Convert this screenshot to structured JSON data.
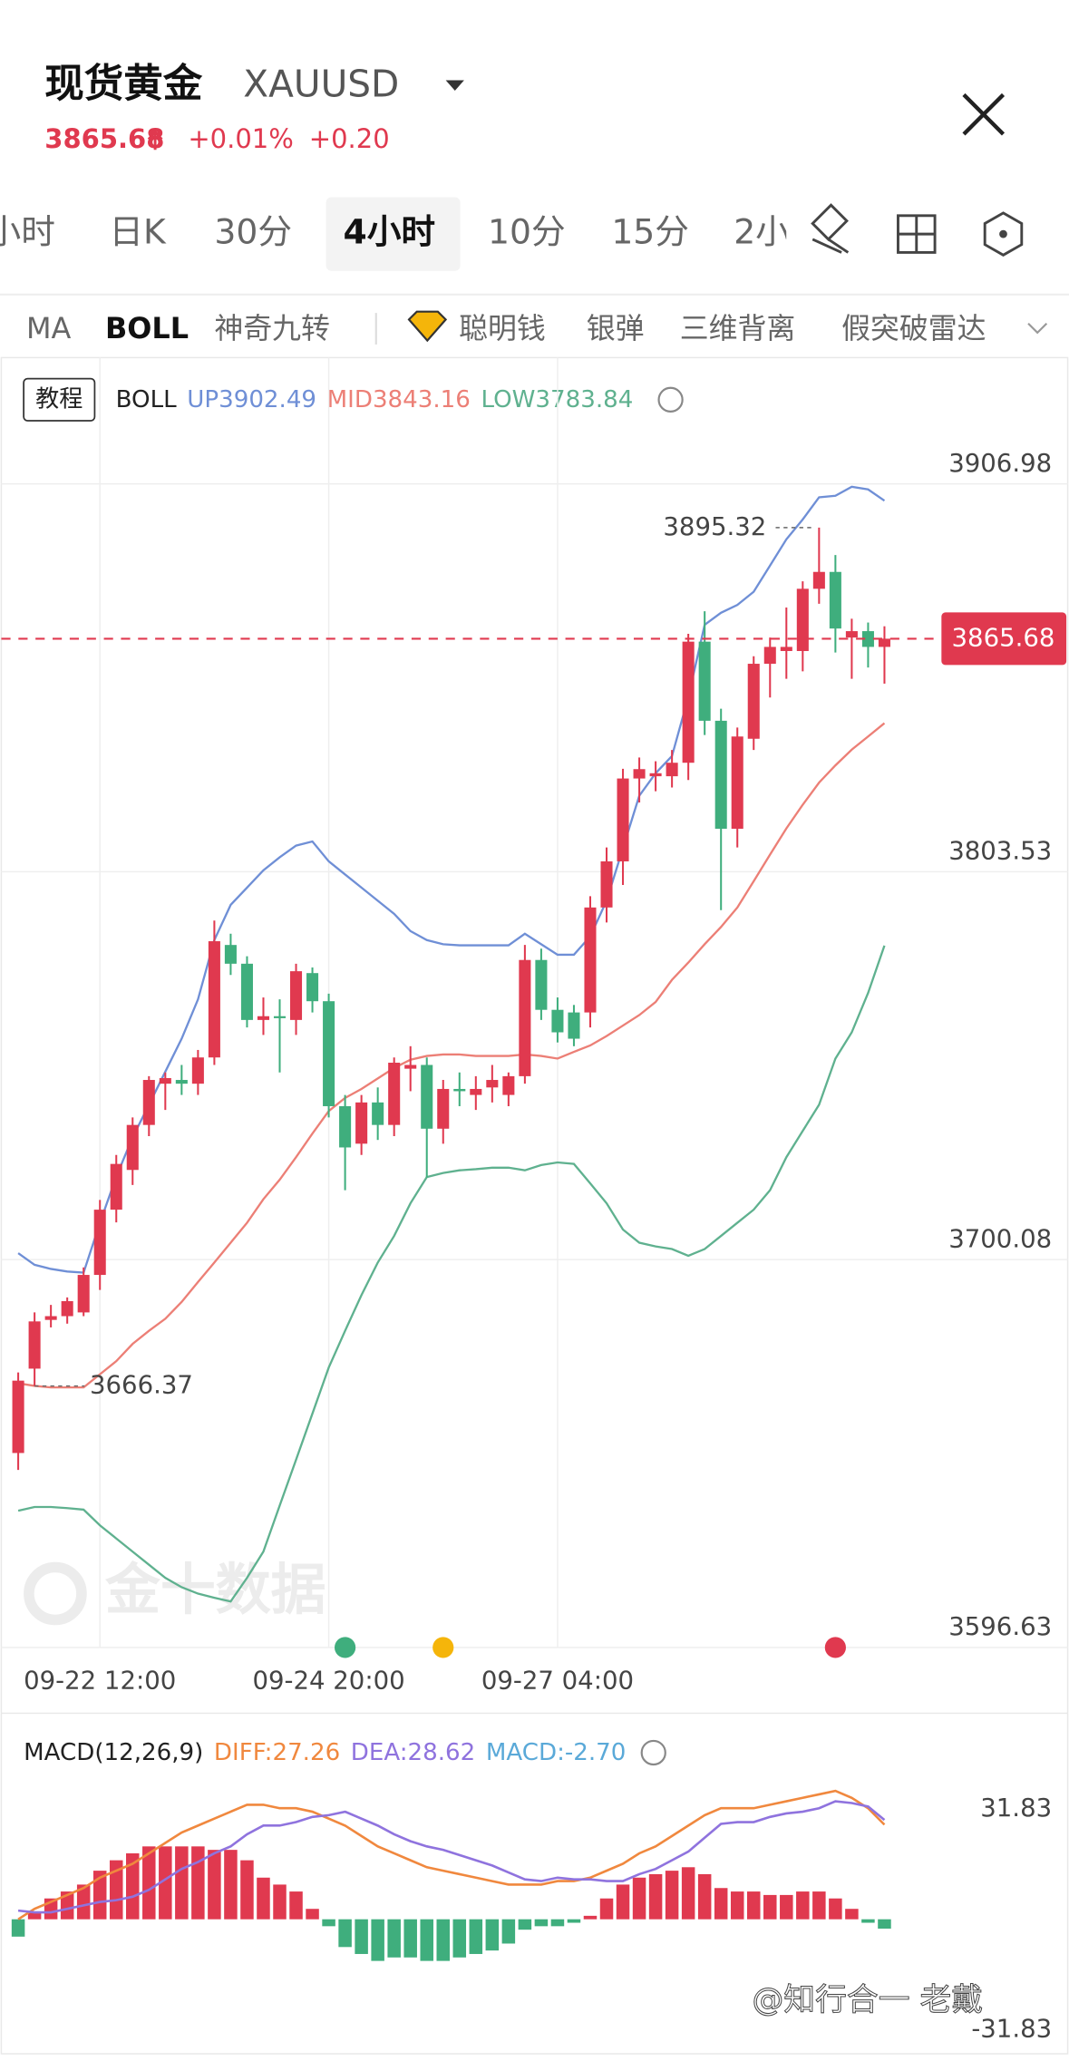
{
  "header": {
    "name": "现货黄金",
    "symbol": "XAUUSD",
    "price": "3865.68",
    "change_pct": "+0.01%",
    "change": "+0.20"
  },
  "tabs": {
    "items": [
      "小时",
      "日K",
      "30分",
      "4小时",
      "10分",
      "15分",
      "2小"
    ],
    "active": 3
  },
  "indicators": {
    "items": [
      "MA",
      "BOLL",
      "神奇九转",
      "聪明钱",
      "银弹",
      "三维背离",
      "假突破雷达"
    ],
    "active": 1
  },
  "chart_data": [
    {
      "type": "candlestick",
      "tutorial": "教程",
      "indicator": "BOLL",
      "categories": [
        null,
        null,
        null,
        null,
        null,
        "09-22 12:00",
        null,
        null,
        null,
        null,
        null,
        null,
        null,
        null,
        null,
        null,
        null,
        null,
        null,
        "09-24 20:00",
        null,
        null,
        null,
        null,
        null,
        null,
        null,
        null,
        null,
        null,
        null,
        null,
        null,
        "09-27 04:00",
        null,
        null,
        null,
        null,
        null,
        null,
        null,
        null,
        null,
        null,
        null,
        null,
        null,
        null,
        null,
        null,
        null,
        null,
        null,
        null
      ],
      "open": [
        3648.5,
        3671,
        3684,
        3685,
        3686,
        3696,
        3713.4,
        3724,
        3736,
        3747,
        3748,
        3747,
        3754,
        3784,
        3779,
        3764,
        3765,
        3764,
        3776.5,
        3769,
        3741,
        3731,
        3742,
        3736,
        3751,
        3752,
        3735,
        3745.6,
        3744,
        3746,
        3744,
        3749,
        3780,
        3766.7,
        3766,
        3766,
        3794,
        3806.3,
        3828.4,
        3829,
        3829,
        3832.6,
        3864.9,
        3843.8,
        3815,
        3839,
        3859,
        3862.4,
        3862.4,
        3879,
        3883.5,
        3866,
        3867.7,
        3863.5
      ],
      "high": [
        3670,
        3686,
        3688,
        3690,
        3698,
        3716,
        3728,
        3738,
        3749,
        3750,
        3752,
        3756,
        3790.5,
        3787,
        3781,
        3770,
        3769.5,
        3779,
        3778,
        3771,
        3744,
        3744,
        3746,
        3754,
        3757,
        3754,
        3748,
        3750,
        3749,
        3752,
        3750,
        3784,
        3783,
        3770,
        3768,
        3797,
        3810,
        3831,
        3834,
        3833,
        3836,
        3867,
        3873,
        3847,
        3842,
        3861,
        3866,
        3874,
        3881,
        3895.32,
        3888,
        3871,
        3870,
        3869
      ],
      "low": [
        3644,
        3666.37,
        3682,
        3683,
        3685,
        3692,
        3710,
        3720,
        3733,
        3740,
        3744,
        3744,
        3752,
        3776,
        3762,
        3760,
        3750,
        3760,
        3766,
        3738,
        3718.6,
        3728,
        3732,
        3733,
        3745,
        3722,
        3731,
        3741,
        3740,
        3742,
        3741,
        3747,
        3764,
        3758,
        3757,
        3762,
        3790,
        3800,
        3822,
        3825,
        3826,
        3828,
        3840,
        3793.3,
        3810,
        3836,
        3850,
        3855,
        3857,
        3875,
        3862,
        3855,
        3858,
        3853.7
      ],
      "close": [
        3667.8,
        3683.6,
        3685,
        3689,
        3696,
        3713.4,
        3725.6,
        3736,
        3748,
        3748.5,
        3747,
        3754,
        3785,
        3779,
        3764,
        3765,
        3764.5,
        3777,
        3769,
        3741,
        3730,
        3742,
        3736,
        3752.6,
        3752,
        3735,
        3745.6,
        3745,
        3745.6,
        3748,
        3749,
        3780,
        3766.7,
        3760.7,
        3759,
        3794,
        3806.3,
        3828.4,
        3830.9,
        3829.8,
        3832.6,
        3864.9,
        3843.8,
        3815,
        3839.6,
        3859,
        3863.5,
        3863.5,
        3879,
        3883.5,
        3868.4,
        3867.7,
        3863.5,
        3865.68
      ],
      "up_color": "#e0394f",
      "down_color": "#3fae7d",
      "series": [
        {
          "name": "UP",
          "color": "#6f8fd6",
          "values": [
            3701.8,
            3698.7,
            3697.6,
            3696.9,
            3696.6,
            3709.9,
            3722.2,
            3732.7,
            3741.4,
            3750.2,
            3759,
            3769.5,
            3785.3,
            3794.7,
            3799.3,
            3803.9,
            3807.4,
            3810.5,
            3811.6,
            3806.3,
            3802.8,
            3799.3,
            3795.8,
            3792.3,
            3787.7,
            3785.3,
            3784.2,
            3783.9,
            3783.9,
            3783.9,
            3783.9,
            3787,
            3784.2,
            3781.4,
            3781.4,
            3786.3,
            3795.8,
            3809.8,
            3823.8,
            3829.8,
            3834.4,
            3850.1,
            3869.4,
            3872.6,
            3874.7,
            3878.2,
            3885.2,
            3892.2,
            3897.5,
            3903.4,
            3903.8,
            3906.2,
            3905.5,
            3902.49
          ]
        },
        {
          "name": "MID",
          "color": "#ec7f76",
          "values": [
            3667.1,
            3666.4,
            3666,
            3666,
            3666,
            3669.5,
            3673,
            3677.6,
            3681.1,
            3684.3,
            3688.8,
            3694.1,
            3699.3,
            3704.6,
            3709.9,
            3716.2,
            3721.4,
            3727.4,
            3733.7,
            3739.7,
            3743.2,
            3745.6,
            3748.4,
            3751.2,
            3753.4,
            3754.4,
            3754.8,
            3754.8,
            3754.4,
            3754.4,
            3754.4,
            3754.8,
            3754.4,
            3753.7,
            3755.5,
            3757.2,
            3759.7,
            3762.5,
            3765.3,
            3768.8,
            3774.7,
            3779.3,
            3784.2,
            3788.8,
            3794,
            3801,
            3808.1,
            3815.1,
            3821.4,
            3827.3,
            3831.9,
            3836.1,
            3839.6,
            3843.16
          ]
        },
        {
          "name": "LOW",
          "color": "#5fb18f",
          "values": [
            3633.1,
            3634.1,
            3634.1,
            3633.8,
            3633.4,
            3629.2,
            3625.7,
            3622.2,
            3618.7,
            3615.2,
            3612.7,
            3611,
            3609.9,
            3608.9,
            3615.2,
            3622.2,
            3634.5,
            3646.7,
            3659,
            3671.3,
            3681.1,
            3690.6,
            3699.3,
            3706.4,
            3715.1,
            3722.1,
            3723.2,
            3723.9,
            3724.2,
            3724.6,
            3724.6,
            3723.9,
            3725.3,
            3726,
            3725.6,
            3720.4,
            3715.1,
            3708.1,
            3704.6,
            3703.6,
            3702.9,
            3701.1,
            3702.9,
            3706.4,
            3709.9,
            3713.4,
            3718.6,
            3727.4,
            3734.4,
            3741.4,
            3753.7,
            3760.7,
            3771.2,
            3783.84
          ]
        }
      ],
      "ylim": [
        3596.63,
        3940.65
      ],
      "yticks": [
        3596.63,
        3700.08,
        3803.53,
        3906.98
      ],
      "grid": true,
      "max_label": 3895.32,
      "min_label": 3666.37,
      "last_price": 3865.68,
      "watermark": "金十数据"
    },
    {
      "type": "macd",
      "indicator": "MACD(12,26,9)",
      "readout": [
        {
          "name": "DIFF:",
          "value": 27.26,
          "color": "#f0883e"
        },
        {
          "name": "DEA:",
          "value": 28.62,
          "color": "#8f73de"
        },
        {
          "name": "MACD:",
          "value": {
            "value": -2.7,
            "label": "-2.70"
          },
          "color": "#5aa9d8"
        }
      ],
      "series": [
        {
          "type": "bar",
          "up_color": "#e0394f",
          "down_color": "#3fae7d",
          "values": [
            -5,
            2,
            6,
            8,
            10,
            14,
            17,
            19,
            21,
            21,
            21,
            21,
            20,
            20,
            17,
            12,
            10,
            8,
            3,
            -2,
            -8,
            -10,
            -12,
            -11,
            -11,
            -12,
            -12,
            -11,
            -10,
            -9,
            -7,
            -3,
            -2,
            -2,
            -1,
            1,
            6,
            10,
            12,
            13,
            14,
            15,
            13,
            9,
            8,
            8,
            7,
            7,
            8,
            8,
            6,
            3,
            -1,
            -2.7
          ]
        },
        {
          "type": "line",
          "color": "#f0883e",
          "values": [
            0,
            3,
            5,
            7,
            9,
            12,
            14,
            16,
            19,
            22,
            25,
            27,
            29,
            31,
            33,
            33,
            32,
            32,
            31,
            29,
            27,
            24,
            21,
            19,
            17,
            15,
            14,
            13,
            12,
            11,
            10,
            10,
            10,
            11,
            11,
            12,
            14,
            16,
            19,
            21,
            24,
            27,
            30,
            32,
            32,
            32,
            33,
            34,
            35,
            36,
            37,
            35,
            32,
            27.26
          ]
        },
        {
          "type": "line",
          "color": "#8f73de",
          "values": [
            2.5,
            2,
            2,
            3,
            4,
            5,
            5.5,
            6.5,
            8.5,
            11.5,
            14.5,
            16.5,
            19,
            21,
            24.5,
            27,
            27,
            28,
            29.5,
            30,
            31,
            29,
            27,
            24.5,
            22.5,
            21,
            20,
            18.5,
            17,
            15.5,
            13.5,
            11.5,
            11,
            12,
            11.5,
            11.5,
            11,
            11,
            13,
            14.5,
            17,
            19.5,
            23.5,
            27.5,
            28,
            28,
            29.5,
            30.5,
            31,
            32,
            34,
            33.5,
            32.5,
            28.62
          ]
        }
      ],
      "ylim": [
        -38,
        41
      ],
      "yticks": [
        31.83,
        -31.83
      ]
    }
  ],
  "credit": "@知行合一 老戴"
}
